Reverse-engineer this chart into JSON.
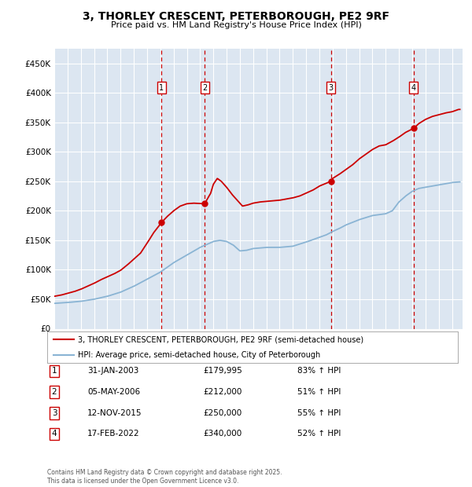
{
  "title": "3, THORLEY CRESCENT, PETERBOROUGH, PE2 9RF",
  "subtitle": "Price paid vs. HM Land Registry's House Price Index (HPI)",
  "legend_label_red": "3, THORLEY CRESCENT, PETERBOROUGH, PE2 9RF (semi-detached house)",
  "legend_label_blue": "HPI: Average price, semi-detached house, City of Peterborough",
  "footer": "Contains HM Land Registry data © Crown copyright and database right 2025.\nThis data is licensed under the Open Government Licence v3.0.",
  "transactions": [
    {
      "num": 1,
      "date": "31-JAN-2003",
      "price": 179995,
      "pct": "83% ↑ HPI",
      "year": 2003.08
    },
    {
      "num": 2,
      "date": "05-MAY-2006",
      "price": 212000,
      "pct": "51% ↑ HPI",
      "year": 2006.34
    },
    {
      "num": 3,
      "date": "12-NOV-2015",
      "price": 250000,
      "pct": "55% ↑ HPI",
      "year": 2015.87
    },
    {
      "num": 4,
      "date": "17-FEB-2022",
      "price": 340000,
      "pct": "52% ↑ HPI",
      "year": 2022.12
    }
  ],
  "ylim": [
    0,
    475000
  ],
  "yticks": [
    0,
    50000,
    100000,
    150000,
    200000,
    250000,
    300000,
    350000,
    400000,
    450000
  ],
  "xlim_start": 1995.0,
  "xlim_end": 2025.8,
  "background_color": "#ffffff",
  "plot_bg_color": "#dce6f1",
  "grid_color": "#ffffff",
  "red_color": "#cc0000",
  "blue_color": "#8ab4d4"
}
